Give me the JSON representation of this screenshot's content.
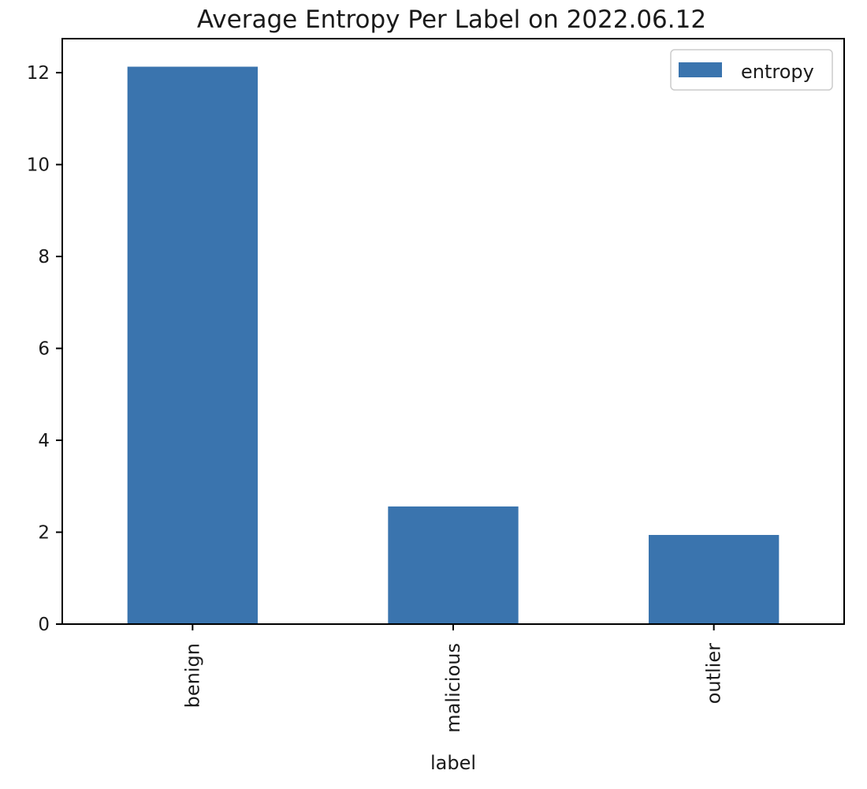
{
  "chart_data": {
    "type": "bar",
    "title": "Average Entropy Per Label on 2022.06.12",
    "xlabel": "label",
    "ylabel": "",
    "categories": [
      "benign",
      "malicious",
      "outlier"
    ],
    "series": [
      {
        "name": "entropy",
        "values": [
          12.13,
          2.56,
          1.94
        ],
        "color": "#3a74ae"
      }
    ],
    "ylim": [
      0,
      12.74
    ],
    "yticks": [
      0,
      2,
      4,
      6,
      8,
      10,
      12
    ],
    "grid": false,
    "legend": {
      "position": "top-right"
    },
    "xtick_rotation": "vertical"
  }
}
